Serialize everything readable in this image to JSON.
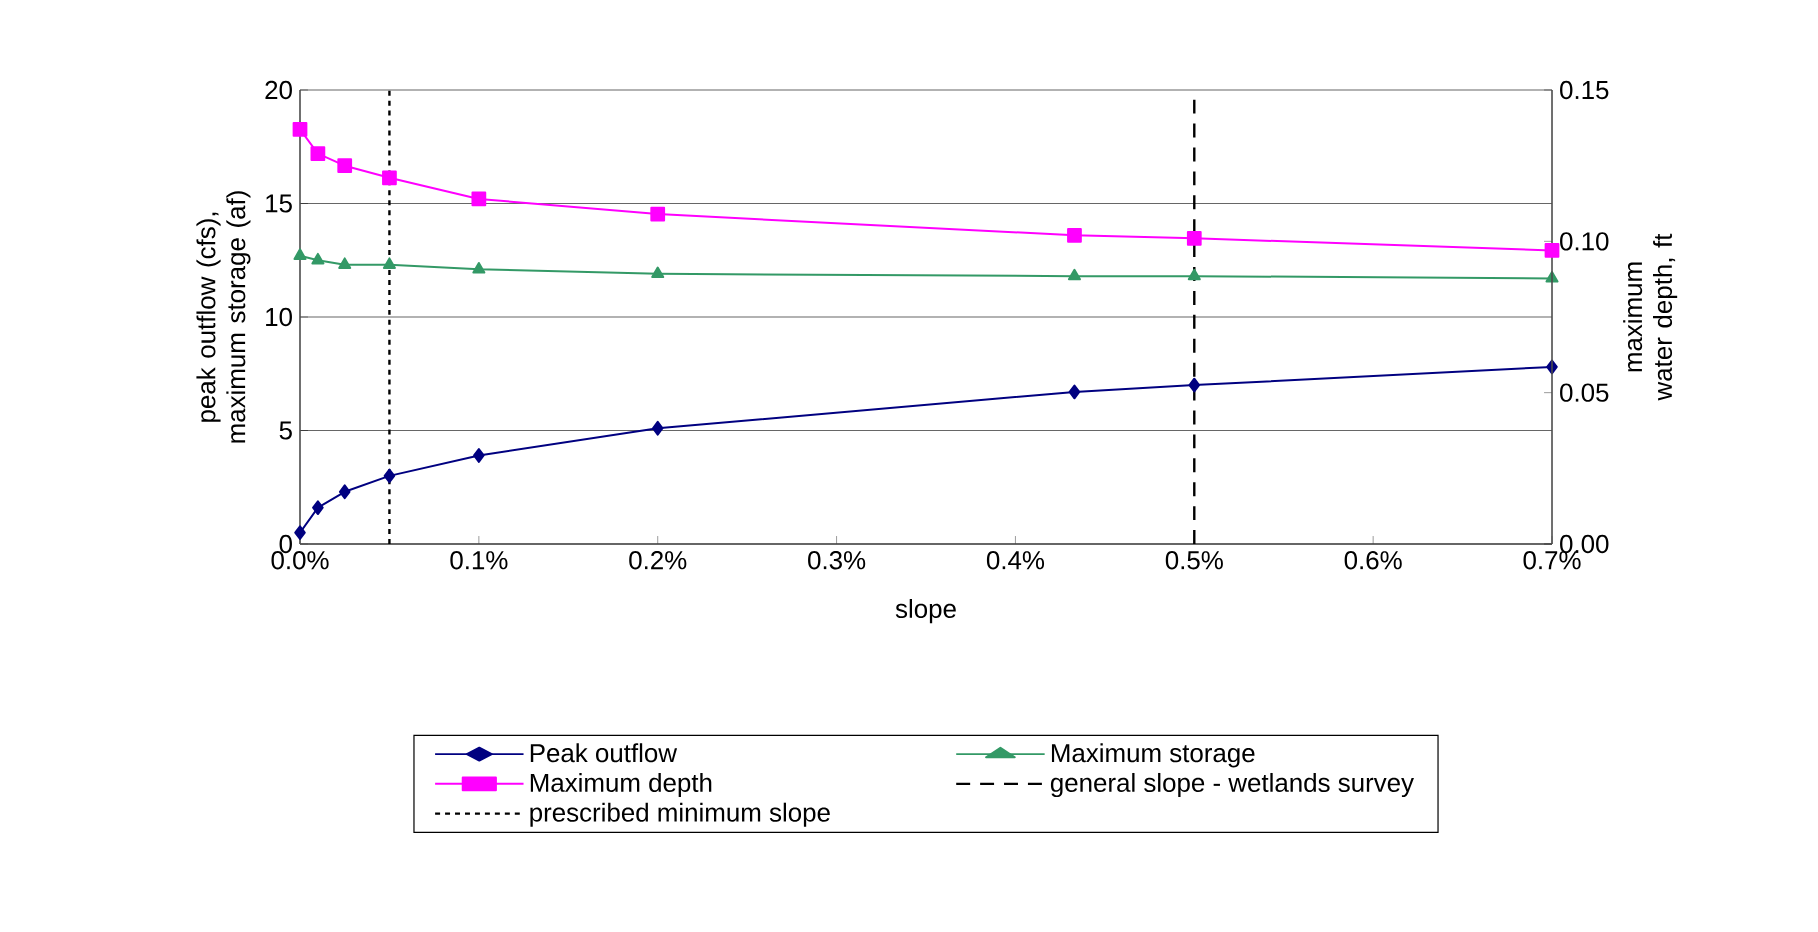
{
  "chart_data": {
    "type": "line",
    "xlabel": "slope",
    "ylabel": "peak outflow (cfs), maximum storage (af)",
    "y2label": "maximum water depth, ft",
    "x": [
      0,
      0.01,
      0.025,
      0.05,
      0.1,
      0.2,
      0.433,
      0.5,
      0.7
    ],
    "series": [
      {
        "name": "Peak outflow",
        "color": "#000080",
        "marker": "diamond",
        "values": [
          0.5,
          1.6,
          2.3,
          3.0,
          3.9,
          5.1,
          6.7,
          7.0,
          7.8
        ]
      },
      {
        "name": "Maximum storage",
        "color": "#339966",
        "marker": "triangle",
        "values": [
          12.7,
          12.5,
          12.3,
          12.3,
          12.1,
          11.9,
          11.8,
          11.8,
          11.7
        ]
      },
      {
        "name": "Maximum depth",
        "color": "#ff00ff",
        "marker": "square",
        "axis": "y2",
        "values": [
          0.137,
          0.129,
          0.125,
          0.121,
          0.114,
          0.109,
          0.102,
          0.101,
          0.097
        ]
      }
    ],
    "ref_lines": [
      {
        "axis": "x",
        "value": 0.5,
        "label": "general slope - wetlands survey",
        "color": "#000000",
        "line_style": "dashed"
      },
      {
        "axis": "x",
        "value": 0.05,
        "label": "prescribed minimum slope",
        "color": "#000000",
        "line_style": "dotted"
      }
    ],
    "xlim": [
      0,
      0.7
    ],
    "xticks": [
      {
        "value": 0,
        "label": "0.0%"
      },
      {
        "value": 0.1,
        "label": "0.1%"
      },
      {
        "value": 0.2,
        "label": "0.2%"
      },
      {
        "value": 0.3,
        "label": "0.3%"
      },
      {
        "value": 0.4,
        "label": "0.4%"
      },
      {
        "value": 0.5,
        "label": "0.5%"
      },
      {
        "value": 0.6,
        "label": "0.6%"
      },
      {
        "value": 0.7,
        "label": "0.7%"
      }
    ],
    "ylim": [
      0,
      20
    ],
    "yticks": [
      0,
      5,
      10,
      15,
      20
    ],
    "y2lim": [
      0,
      0.15
    ],
    "y2ticks": [
      {
        "value": 0,
        "label": "0.00"
      },
      {
        "value": 0.05,
        "label": "0.05"
      },
      {
        "value": 0.1,
        "label": "0.10"
      },
      {
        "value": 0.15,
        "label": "0.15"
      }
    ],
    "grid": "y",
    "legend": "bottom",
    "line_style": "solid"
  }
}
